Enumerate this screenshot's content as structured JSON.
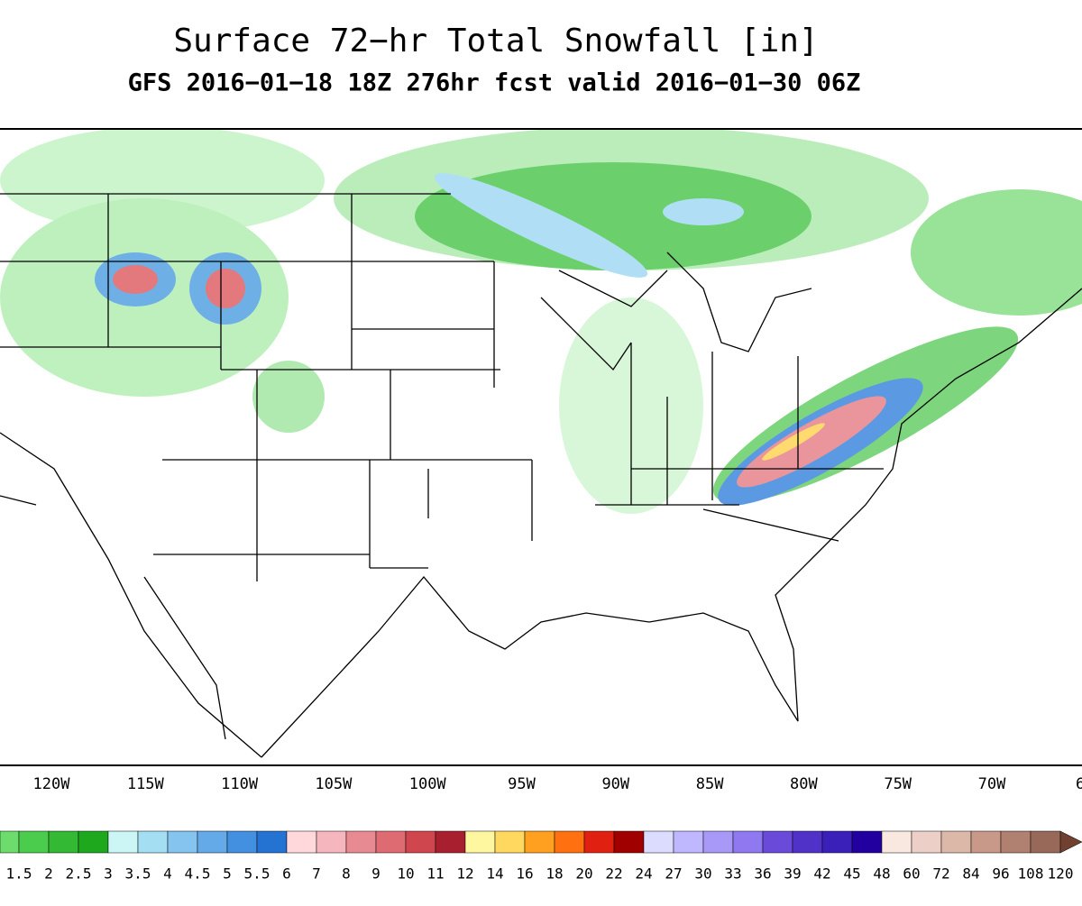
{
  "header": {
    "title": "Surface 72−hr Total Snowfall [in]",
    "subtitle": "GFS 2016−01−18 18Z 276hr fcst valid 2016−01−30 06Z"
  },
  "longitude_labels": [
    "120W",
    "115W",
    "110W",
    "105W",
    "100W",
    "95W",
    "90W",
    "85W",
    "80W",
    "75W",
    "70W",
    "6"
  ],
  "colorbar": {
    "levels": [
      1.5,
      2,
      2.5,
      3,
      3.5,
      4,
      4.5,
      5,
      5.5,
      6,
      7,
      8,
      9,
      10,
      11,
      12,
      14,
      16,
      18,
      20,
      22,
      24,
      27,
      30,
      33,
      36,
      39,
      42,
      45,
      48,
      60,
      72,
      84,
      96,
      108,
      120
    ],
    "below_color": "#6cdc6c",
    "interval_colors": [
      "#4ccc4c",
      "#33b933",
      "#1ea81e",
      "#ccf5f5",
      "#a4def2",
      "#84c4ee",
      "#64aae8",
      "#4490e0",
      "#2472d2",
      "#ffd8dc",
      "#f6b6be",
      "#e88a92",
      "#de6a72",
      "#d0464e",
      "#a82030",
      "#fff6a0",
      "#ffd860",
      "#ffa020",
      "#ff7010",
      "#e02010",
      "#a00000",
      "#dcdcff",
      "#c0b8ff",
      "#a898f8",
      "#9078f0",
      "#6a4ad8",
      "#5032c8",
      "#3a20b8",
      "#2200a0",
      "#f8e8e0",
      "#ecd0c8",
      "#dcb8a8",
      "#c89888",
      "#b08070",
      "#986858"
    ],
    "above_color": "#704030"
  }
}
